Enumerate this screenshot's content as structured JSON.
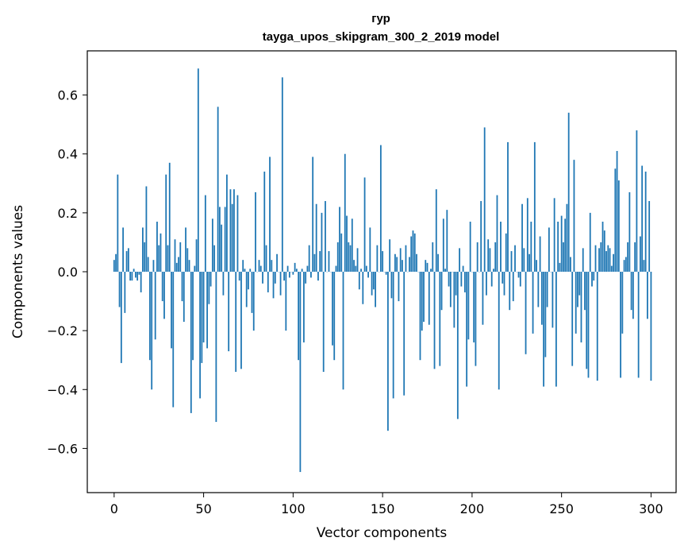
{
  "chart_data": {
    "type": "bar",
    "title_line1": "гур",
    "title_line2": "tayga_upos_skipgram_300_2_2019 model",
    "xlabel": "Vector components",
    "ylabel": "Components values",
    "xlim": [
      -15,
      314
    ],
    "ylim": [
      -0.75,
      0.75
    ],
    "xticks": [
      0,
      50,
      100,
      150,
      200,
      250,
      300
    ],
    "xtick_labels": [
      "0",
      "50",
      "100",
      "150",
      "200",
      "250",
      "300"
    ],
    "yticks": [
      -0.6,
      -0.4,
      -0.2,
      0.0,
      0.2,
      0.4,
      0.6
    ],
    "ytick_labels": [
      "−0.6",
      "−0.4",
      "−0.2",
      "0.0",
      "0.2",
      "0.4",
      "0.6"
    ],
    "bar_color": "#1f77b4",
    "grid": false,
    "x_start": 0,
    "values": [
      0.04,
      0.06,
      0.33,
      -0.12,
      -0.31,
      0.15,
      -0.14,
      0.07,
      0.08,
      -0.03,
      -0.03,
      0.01,
      -0.02,
      -0.03,
      -0.01,
      -0.07,
      0.15,
      0.1,
      0.29,
      0.05,
      -0.3,
      -0.4,
      0.04,
      -0.23,
      0.17,
      0.09,
      0.13,
      -0.1,
      -0.16,
      0.33,
      0.09,
      0.37,
      -0.26,
      -0.46,
      0.11,
      0.03,
      0.05,
      0.1,
      -0.1,
      -0.17,
      0.15,
      0.08,
      0.04,
      -0.48,
      -0.3,
      0.02,
      0.11,
      0.69,
      -0.43,
      -0.31,
      -0.24,
      0.26,
      -0.26,
      -0.11,
      -0.05,
      0.18,
      0.09,
      -0.51,
      0.56,
      0.22,
      0.16,
      -0.08,
      0.22,
      0.33,
      -0.27,
      0.28,
      0.23,
      0.28,
      -0.34,
      0.26,
      -0.03,
      -0.33,
      0.04,
      0.01,
      -0.12,
      -0.06,
      0.01,
      -0.14,
      -0.2,
      0.27,
      0.0,
      0.04,
      0.02,
      -0.04,
      0.34,
      0.09,
      -0.07,
      0.39,
      0.04,
      -0.09,
      -0.04,
      0.06,
      0.0,
      -0.08,
      0.66,
      -0.03,
      -0.2,
      0.02,
      -0.02,
      0.0,
      -0.01,
      0.03,
      0.01,
      -0.3,
      -0.68,
      0.01,
      -0.24,
      -0.04,
      0.02,
      0.09,
      -0.02,
      0.39,
      0.06,
      0.23,
      -0.03,
      0.07,
      0.2,
      -0.34,
      0.24,
      0.0,
      0.07,
      0.0,
      -0.25,
      -0.3,
      0.02,
      0.1,
      0.22,
      0.13,
      -0.4,
      0.4,
      0.19,
      0.1,
      0.09,
      0.18,
      0.04,
      0.02,
      0.08,
      -0.06,
      0.01,
      -0.11,
      0.32,
      0.02,
      -0.02,
      0.15,
      -0.08,
      -0.06,
      -0.12,
      0.09,
      0.0,
      0.43,
      0.07,
      0.0,
      -0.01,
      -0.54,
      0.11,
      -0.09,
      -0.43,
      0.06,
      0.05,
      -0.1,
      0.08,
      0.04,
      -0.42,
      0.09,
      0.0,
      0.05,
      0.12,
      0.14,
      0.13,
      0.06,
      0.0,
      -0.3,
      -0.2,
      -0.17,
      0.04,
      0.03,
      -0.18,
      0.01,
      0.1,
      -0.33,
      0.28,
      0.06,
      -0.32,
      -0.13,
      0.18,
      0.01,
      0.21,
      -0.05,
      -0.12,
      0.0,
      -0.19,
      -0.08,
      -0.5,
      0.08,
      -0.05,
      0.02,
      -0.07,
      -0.39,
      -0.23,
      0.17,
      0.0,
      -0.24,
      -0.32,
      0.1,
      0.0,
      0.24,
      -0.18,
      0.49,
      -0.08,
      0.11,
      0.08,
      -0.05,
      0.01,
      0.1,
      0.26,
      -0.4,
      0.17,
      -0.04,
      -0.08,
      0.13,
      0.44,
      -0.13,
      0.07,
      -0.1,
      0.09,
      0.0,
      -0.02,
      -0.05,
      0.23,
      0.08,
      -0.28,
      0.25,
      0.06,
      0.17,
      -0.21,
      0.44,
      0.04,
      -0.12,
      0.12,
      -0.18,
      -0.39,
      -0.29,
      -0.12,
      0.15,
      0.0,
      -0.19,
      0.25,
      -0.39,
      0.17,
      0.03,
      0.19,
      0.1,
      0.18,
      0.23,
      0.54,
      0.05,
      -0.32,
      0.38,
      -0.21,
      -0.12,
      -0.08,
      -0.24,
      0.08,
      -0.13,
      -0.33,
      -0.36,
      0.2,
      -0.05,
      -0.03,
      0.09,
      -0.37,
      0.08,
      0.1,
      0.17,
      0.14,
      0.07,
      0.09,
      0.08,
      0.02,
      0.06,
      0.35,
      0.41,
      0.31,
      -0.36,
      -0.21,
      0.04,
      0.05,
      0.1,
      0.27,
      -0.13,
      -0.16,
      0.1,
      0.48,
      -0.36,
      0.12,
      0.36,
      0.04,
      0.34,
      -0.16,
      0.24,
      -0.37
    ]
  }
}
